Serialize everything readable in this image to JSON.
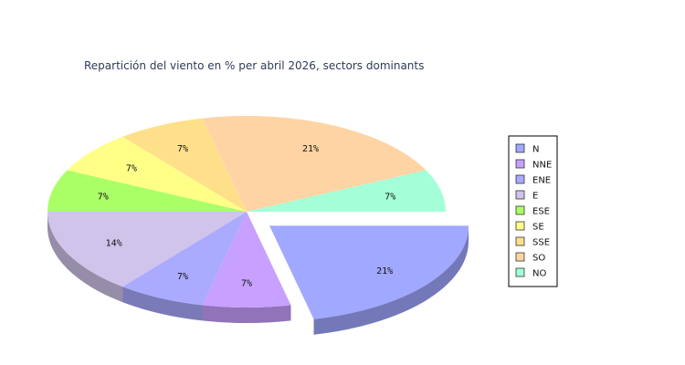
{
  "chart_data": {
    "type": "pie",
    "title": "Repartición del viento en % per abril 2026, sectors dominants",
    "legend_position": "right",
    "exploded": [
      "N"
    ],
    "slices": [
      {
        "name": "N",
        "value": 21,
        "label": "21%",
        "color": "#a0a8ff"
      },
      {
        "name": "NNE",
        "value": 7,
        "label": "7%",
        "color": "#c8a0ff"
      },
      {
        "name": "ENE",
        "value": 7,
        "label": "7%",
        "color": "#aaaaff"
      },
      {
        "name": "E",
        "value": 14,
        "label": "14%",
        "color": "#d0c4ea"
      },
      {
        "name": "ESE",
        "value": 7,
        "label": "7%",
        "color": "#aaff66"
      },
      {
        "name": "SE",
        "value": 7,
        "label": "7%",
        "color": "#ffff88"
      },
      {
        "name": "SSE",
        "value": 7,
        "label": "7%",
        "color": "#ffe08a"
      },
      {
        "name": "SO",
        "value": 21,
        "label": "21%",
        "color": "#ffd4a4"
      },
      {
        "name": "NO",
        "value": 7,
        "label": "7%",
        "color": "#a4ffd8"
      }
    ]
  }
}
